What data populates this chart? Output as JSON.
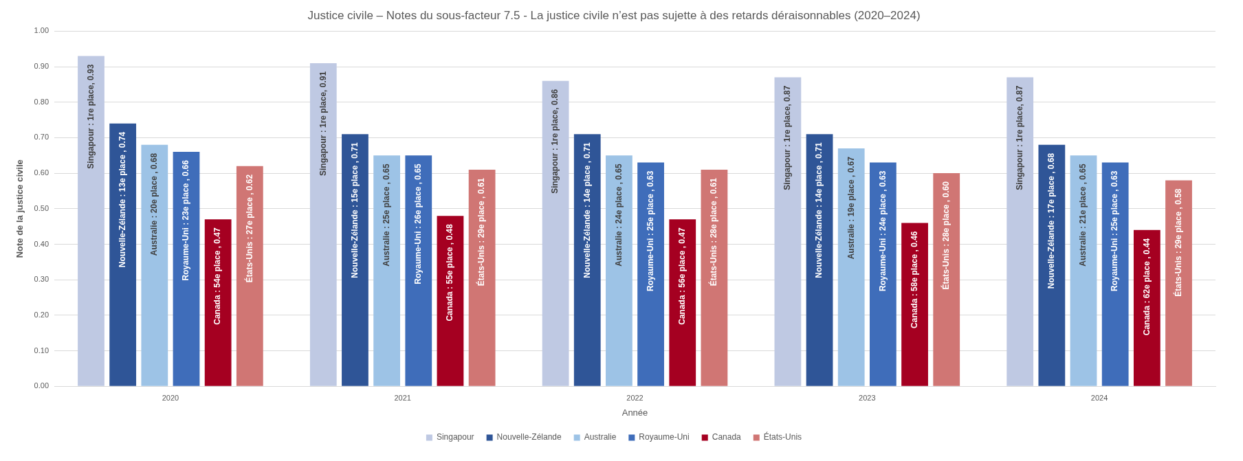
{
  "chart_data": {
    "type": "bar",
    "title": "Justice civile – Notes du sous-facteur 7.5 - La justice civile n’est pas sujette à des retards déraisonnables (2020–2024)",
    "xlabel": "Année",
    "ylabel": "Note de la justice civile",
    "categories": [
      "2020",
      "2021",
      "2022",
      "2023",
      "2024"
    ],
    "series": [
      {
        "name": "Singapour",
        "color": "#bfc9e3",
        "values": [
          0.93,
          0.91,
          0.86,
          0.87,
          0.87
        ],
        "value_labels": [
          "Singapour : 1re place, 0.93",
          "Singapour : 1re place, 0.91",
          "Singapour : 1re place, 0.86",
          "Singapour : 1re place, 0.87",
          "Singapour : 1re place, 0.87"
        ]
      },
      {
        "name": "Nouvelle-Zélande",
        "color": "#2f5597",
        "values": [
          0.74,
          0.71,
          0.71,
          0.71,
          0.68
        ],
        "value_labels": [
          "Nouvelle-Zélande : 13e place , 0.74",
          "Nouvelle-Zélande : 15e place , 0.71",
          "Nouvelle-Zélande : 14e place , 0.71",
          "Nouvelle-Zélande : 14e place , 0.71",
          "Nouvelle-Zélande : 17e place , 0.68"
        ]
      },
      {
        "name": "Australie",
        "color": "#9dc3e6",
        "values": [
          0.68,
          0.65,
          0.65,
          0.67,
          0.65
        ],
        "value_labels": [
          "Australie : 20e place , 0.68",
          "Australie : 25e place , 0.65",
          "Australie : 24e place , 0.65",
          "Australie : 19e place , 0.67",
          "Australie : 21e place , 0.65"
        ]
      },
      {
        "name": "Royaume-Uni",
        "color": "#3f6dba",
        "values": [
          0.66,
          0.65,
          0.63,
          0.63,
          0.63
        ],
        "value_labels": [
          "Royaume-Uni : 23e place , 0.66",
          "Royaume-Uni : 26e place , 0.65",
          "Royaume-Uni : 25e place , 0.63",
          "Royaume-Uni : 24e place , 0.63",
          "Royaume-Uni : 25e place , 0.63"
        ]
      },
      {
        "name": "Canada",
        "color": "#a50021",
        "values": [
          0.47,
          0.48,
          0.47,
          0.46,
          0.44
        ],
        "value_labels": [
          "Canada : 54e place , 0.47",
          "Canada : 55e place , 0.48",
          "Canada : 56e place , 0.47",
          "Canada : 58e place , 0.46",
          "Canada : 62e place , 0.44"
        ]
      },
      {
        "name": "États-Unis",
        "color": "#d07674",
        "values": [
          0.62,
          0.61,
          0.61,
          0.6,
          0.58
        ],
        "value_labels": [
          "États-Unis : 27e place , 0.62",
          "États-Unis : 29e place , 0.61",
          "États-Unis : 28e place , 0.61",
          "États-Unis : 28e place , 0.60",
          "États-Unis : 29e place , 0.58"
        ]
      }
    ],
    "ylim": [
      0,
      1
    ],
    "yticks": [
      {
        "value": 0,
        "label": "0.00"
      },
      {
        "value": 0.1,
        "label": "0.10"
      },
      {
        "value": 0.2,
        "label": "0.20"
      },
      {
        "value": 0.3,
        "label": "0.30"
      },
      {
        "value": 0.4,
        "label": "0.40"
      },
      {
        "value": 0.5,
        "label": "0.50"
      },
      {
        "value": 0.6,
        "label": "0.60"
      },
      {
        "value": 0.7,
        "label": "0.70"
      },
      {
        "value": 0.8,
        "label": "0.80"
      },
      {
        "value": 0.9,
        "label": "0.90"
      },
      {
        "value": 1,
        "label": "1.00"
      }
    ],
    "grid": "y",
    "legend": "bottom"
  }
}
